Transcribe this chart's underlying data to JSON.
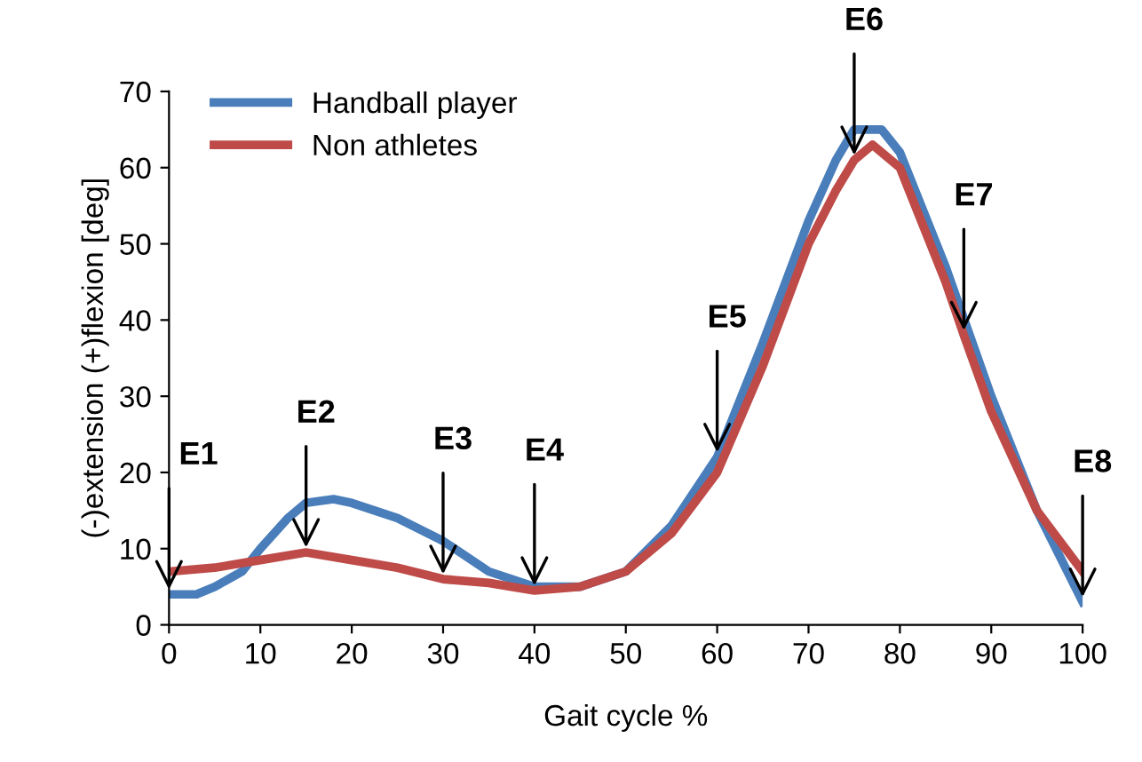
{
  "chart_data": {
    "type": "line",
    "xlabel": "Gait cycle %",
    "ylabel": "(-)extension (+)flexion [deg]",
    "xlim": [
      0,
      100
    ],
    "ylim": [
      0,
      70
    ],
    "xticks": [
      0,
      10,
      20,
      30,
      40,
      50,
      60,
      70,
      80,
      90,
      100
    ],
    "yticks": [
      0,
      10,
      20,
      30,
      40,
      50,
      60,
      70
    ],
    "grid": false,
    "legend": "top left",
    "line_style": "solid",
    "series": [
      {
        "name": "Handball player",
        "color": "#4a7ebb",
        "x": [
          0,
          3,
          5,
          8,
          10,
          13,
          15,
          18,
          20,
          25,
          30,
          35,
          40,
          45,
          50,
          55,
          60,
          65,
          70,
          73,
          75,
          78,
          80,
          85,
          90,
          95,
          100
        ],
        "values": [
          4,
          4,
          5,
          7,
          10,
          14,
          16,
          16.5,
          16,
          14,
          11,
          7,
          5,
          5,
          7,
          13,
          22,
          37,
          53,
          61,
          65,
          65,
          62,
          47,
          30,
          15,
          3
        ]
      },
      {
        "name": "Non athletes",
        "color": "#be4b48",
        "x": [
          0,
          5,
          10,
          15,
          20,
          25,
          30,
          35,
          40,
          45,
          50,
          55,
          60,
          65,
          70,
          73,
          75,
          77,
          80,
          85,
          87,
          90,
          95,
          100
        ],
        "values": [
          7,
          7.5,
          8.5,
          9.5,
          8.5,
          7.5,
          6,
          5.5,
          4.5,
          5,
          7,
          12,
          20,
          34,
          50,
          57,
          61,
          63,
          60,
          45,
          38,
          28,
          15,
          7
        ]
      }
    ],
    "annotations": [
      {
        "text": "E1",
        "x": 0,
        "y": 4
      },
      {
        "text": "E2",
        "x": 15,
        "y": 9.5
      },
      {
        "text": "E3",
        "x": 30,
        "y": 6
      },
      {
        "text": "E4",
        "x": 40,
        "y": 4.5
      },
      {
        "text": "E5",
        "x": 60,
        "y": 22
      },
      {
        "text": "E6",
        "x": 75,
        "y": 61
      },
      {
        "text": "E7",
        "x": 87,
        "y": 38
      },
      {
        "text": "E8",
        "x": 100,
        "y": 3
      }
    ]
  }
}
